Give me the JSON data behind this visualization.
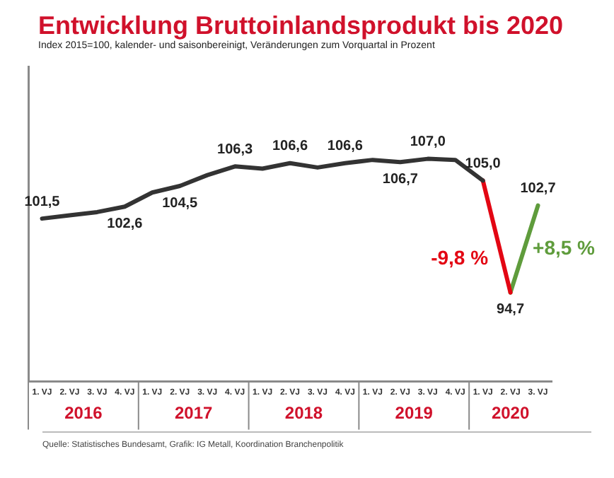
{
  "chart_data": {
    "type": "line",
    "title": "Entwicklung Bruttoinlandsprodukt bis 2020",
    "subtitle": "Index 2015=100, kalender- und saisonbereinigt, Veränderungen zum Vorquartal in Prozent",
    "categories": [
      "1. VJ",
      "2. VJ",
      "3. VJ",
      "4. VJ",
      "1. VJ",
      "2. VJ",
      "3. VJ",
      "4. VJ",
      "1. VJ",
      "2. VJ",
      "3. VJ",
      "4. VJ",
      "1. VJ",
      "2. VJ",
      "3. VJ",
      "4. VJ",
      "1. VJ",
      "2. VJ",
      "3. VJ"
    ],
    "series": [
      {
        "color": "#333333",
        "values": [
          101.5,
          101.8,
          102.1,
          102.6,
          103.9,
          104.5,
          105.5,
          106.3,
          106.1,
          106.6,
          106.2,
          106.6,
          106.9,
          106.7,
          107.0,
          106.9,
          105.0,
          null,
          null
        ],
        "value_labels": [
          "101,5",
          null,
          null,
          "102,6",
          null,
          "104,5",
          null,
          "106,3",
          null,
          "106,6",
          null,
          "106,6",
          null,
          "106,7",
          "107,0",
          null,
          "105,0",
          null,
          null
        ]
      },
      {
        "color": "#e30613",
        "values": [
          null,
          null,
          null,
          null,
          null,
          null,
          null,
          null,
          null,
          null,
          null,
          null,
          null,
          null,
          null,
          null,
          105.0,
          94.7,
          null
        ],
        "value_labels": [
          null,
          null,
          null,
          null,
          null,
          null,
          null,
          null,
          null,
          null,
          null,
          null,
          null,
          null,
          null,
          null,
          null,
          "94,7",
          null
        ]
      },
      {
        "color": "#5f9c3c",
        "values": [
          null,
          null,
          null,
          null,
          null,
          null,
          null,
          null,
          null,
          null,
          null,
          null,
          null,
          null,
          null,
          null,
          null,
          94.7,
          102.7
        ],
        "value_labels": [
          null,
          null,
          null,
          null,
          null,
          null,
          null,
          null,
          null,
          null,
          null,
          null,
          null,
          null,
          null,
          null,
          null,
          null,
          "102,7"
        ]
      }
    ],
    "annotations": [
      "-9,8 %",
      "+8,5 %",
      "2016",
      "2017",
      "2018",
      "2019",
      "2020",
      "Quelle: Statistisches Bundesamt, Grafik: IG Metall, Koordination Branchenpolitik"
    ],
    "ylim": [
      86.5,
      115.5
    ],
    "tick_labels": "x",
    "grid": false,
    "legend": false,
    "marker": "none",
    "line_style": "solid"
  }
}
